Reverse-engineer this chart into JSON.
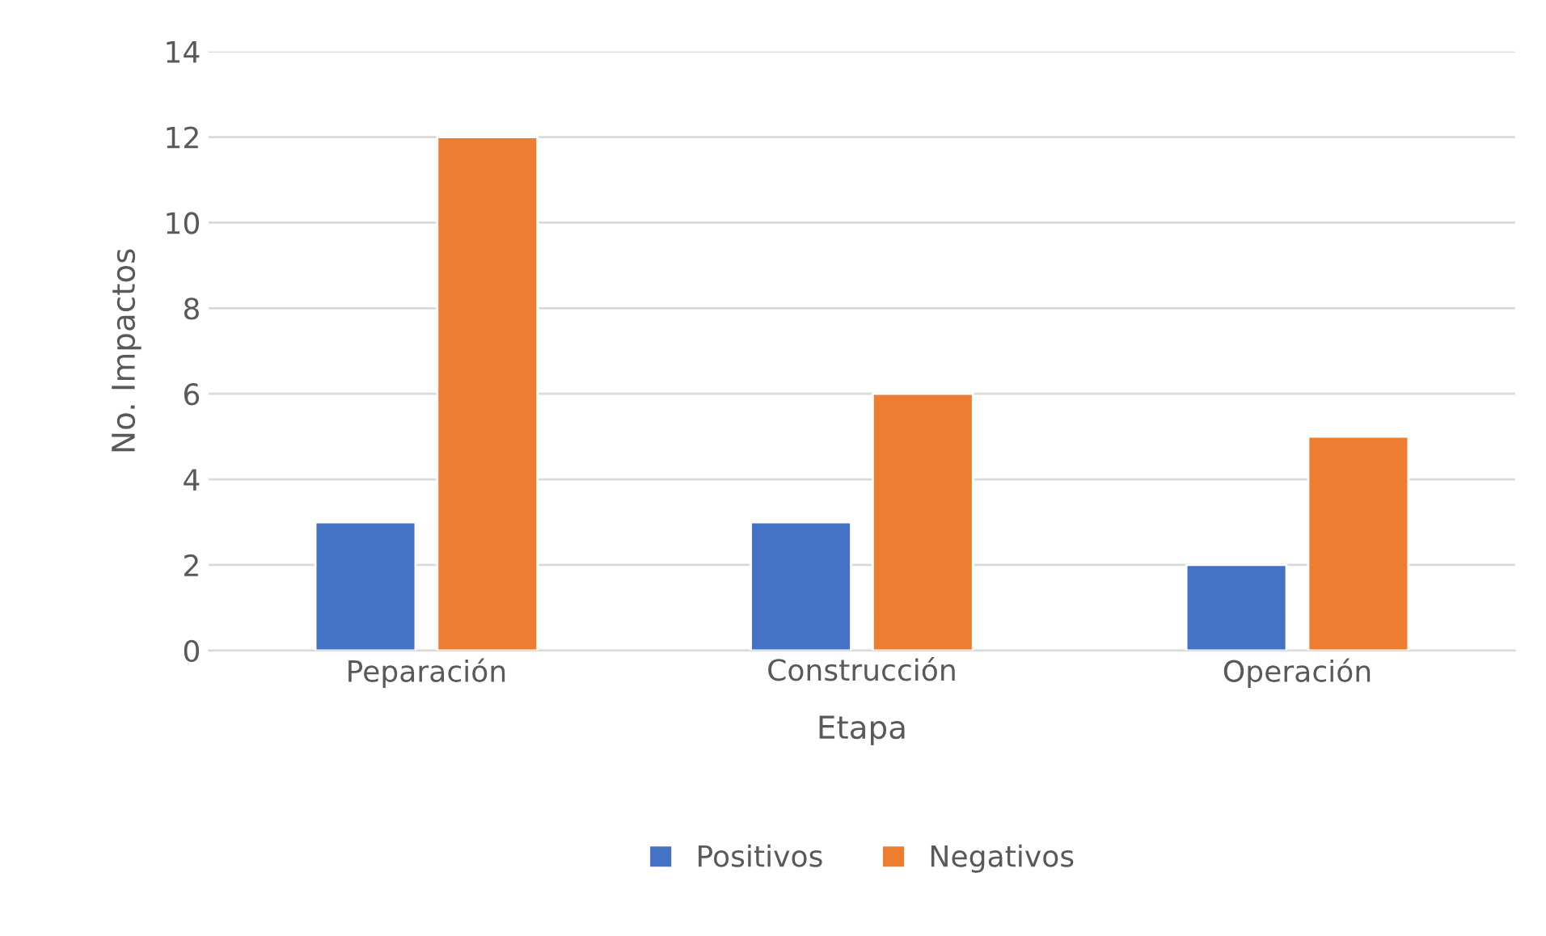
{
  "chart_data": {
    "type": "bar",
    "xlabel": "Etapa",
    "ylabel": "No. Impactos",
    "categories": [
      "Peparación",
      "Construcción",
      "Operación"
    ],
    "series": [
      {
        "name": "Positivos",
        "color": "#4472c4",
        "values": [
          3,
          3,
          2
        ]
      },
      {
        "name": "Negativos",
        "color": "#ed7d31",
        "values": [
          12,
          6,
          5
        ]
      }
    ],
    "ylim": [
      0,
      14
    ],
    "yticks": [
      0,
      2,
      4,
      6,
      8,
      10,
      12,
      14
    ],
    "grid": "y",
    "legend": "bottom"
  }
}
